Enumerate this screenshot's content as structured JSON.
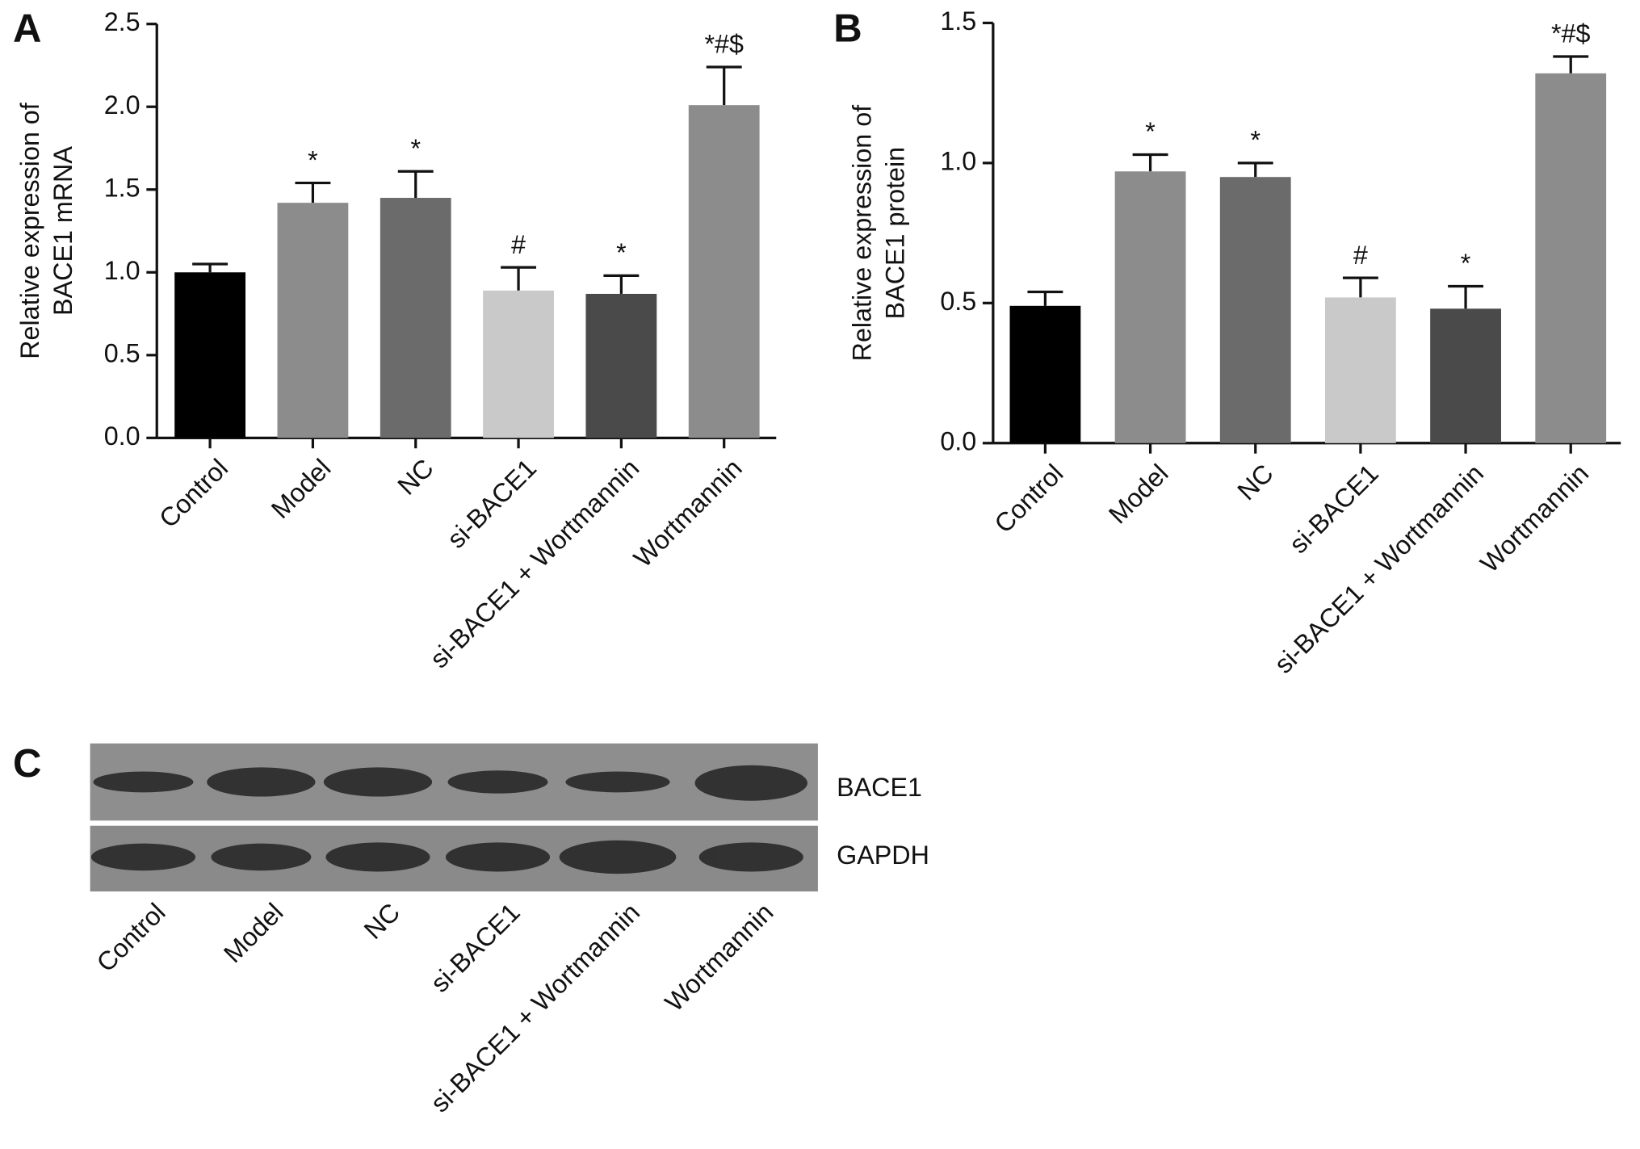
{
  "chart_data": [
    {
      "type": "bar",
      "panel_label": "A",
      "ylabel": [
        "Relative expression of",
        "BACE1 mRNA"
      ],
      "categories": [
        "Control",
        "Model",
        "NC",
        "si-BACE1",
        "si-BACE1 + Wortmannin",
        "Wortmannin"
      ],
      "values": [
        1.0,
        1.42,
        1.45,
        0.89,
        0.87,
        2.01
      ],
      "errors": [
        0.05,
        0.12,
        0.16,
        0.14,
        0.11,
        0.23
      ],
      "annotations": [
        null,
        "*",
        "*",
        "#",
        "*",
        "*#$"
      ],
      "colors": [
        "#000000",
        "#8c8c8c",
        "#6b6b6b",
        "#c9c9c9",
        "#4a4a4a",
        "#8c8c8c"
      ],
      "ylim": [
        0,
        2.5
      ],
      "yticks": [
        {
          "value": 0,
          "label": "0.0"
        },
        0.5,
        {
          "value": 1,
          "label": "1.0"
        },
        1.5,
        {
          "value": 2,
          "label": "2.0"
        },
        2.5
      ]
    },
    {
      "type": "bar",
      "panel_label": "B",
      "ylabel": [
        "Relative expression of",
        "BACE1 protein"
      ],
      "categories": [
        "Control",
        "Model",
        "NC",
        "si-BACE1",
        "si-BACE1 + Wortmannin",
        "Wortmannin"
      ],
      "values": [
        0.49,
        0.97,
        0.95,
        0.52,
        0.48,
        1.32
      ],
      "errors": [
        0.05,
        0.06,
        0.05,
        0.07,
        0.08,
        0.06
      ],
      "annotations": [
        null,
        "*",
        "*",
        "#",
        "*",
        "*#$"
      ],
      "colors": [
        "#000000",
        "#8c8c8c",
        "#6b6b6b",
        "#c9c9c9",
        "#4a4a4a",
        "#8c8c8c"
      ],
      "ylim": [
        0,
        1.5
      ],
      "yticks": [
        {
          "value": 0,
          "label": "0.0"
        },
        0.5,
        {
          "value": 1,
          "label": "1.0"
        },
        1.5
      ]
    }
  ],
  "blot": {
    "panel_label": "C",
    "rows": [
      "BACE1",
      "GAPDH"
    ],
    "lanes": [
      "Control",
      "Model",
      "NC",
      "si-BACE1",
      "si-BACE1 + Wortmannin",
      "Wortmannin"
    ]
  }
}
